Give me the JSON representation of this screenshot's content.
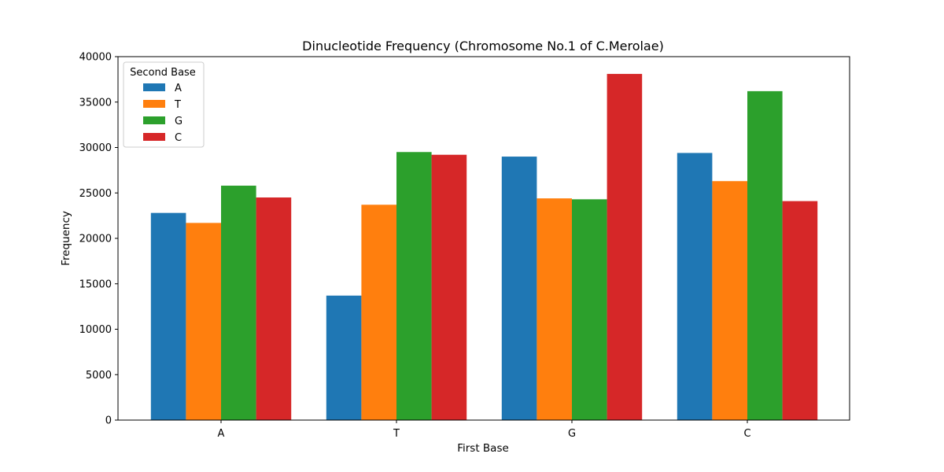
{
  "chart_data": {
    "type": "bar",
    "title": "Dinucleotide Frequency (Chromosome No.1 of C.Merolae)",
    "xlabel": "First Base",
    "ylabel": "Frequency",
    "categories": [
      "A",
      "T",
      "G",
      "C"
    ],
    "ylim": [
      0,
      40000
    ],
    "yticks": [
      "0",
      "5000",
      "10000",
      "15000",
      "20000",
      "25000",
      "30000",
      "35000",
      "40000"
    ],
    "grid": false,
    "legend": {
      "title": "Second Base",
      "placement": "top-left"
    },
    "series": [
      {
        "name": "A",
        "color": "#1f77b4",
        "values": [
          22800,
          13700,
          29000,
          29400
        ]
      },
      {
        "name": "T",
        "color": "#ff7f0e",
        "values": [
          21700,
          23700,
          24400,
          26300
        ]
      },
      {
        "name": "G",
        "color": "#2ca02c",
        "values": [
          25800,
          29500,
          24300,
          36200
        ]
      },
      {
        "name": "C",
        "color": "#d62728",
        "values": [
          24500,
          29200,
          38100,
          24100
        ]
      }
    ]
  }
}
